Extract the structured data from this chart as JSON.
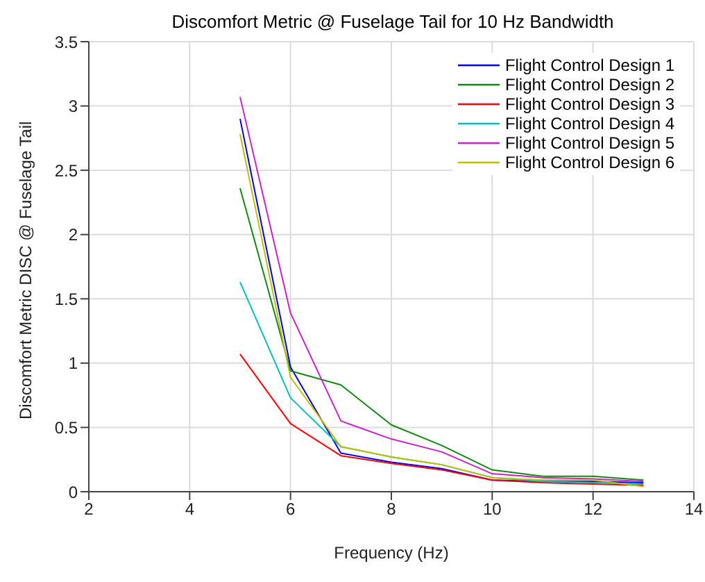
{
  "chart_data": {
    "type": "line",
    "title": "Discomfort Metric @ Fuselage Tail for 10 Hz Bandwidth",
    "xlabel": "Frequency (Hz)",
    "ylabel": "Discomfort Metric DISC @ Fuselage Tail",
    "x": [
      5,
      6,
      7,
      8,
      9,
      10,
      11,
      12,
      13
    ],
    "series": [
      {
        "name": "Flight Control Design 1",
        "color": "#0000ff",
        "values": [
          2.9,
          0.97,
          0.3,
          0.23,
          0.18,
          0.09,
          0.08,
          0.08,
          0.07
        ]
      },
      {
        "name": "Flight Control Design 2",
        "color": "#118a11",
        "values": [
          2.36,
          0.94,
          0.83,
          0.52,
          0.36,
          0.17,
          0.12,
          0.12,
          0.09
        ]
      },
      {
        "name": "Flight Control Design 3",
        "color": "#ff0000",
        "values": [
          1.07,
          0.53,
          0.28,
          0.22,
          0.17,
          0.09,
          0.07,
          0.06,
          0.05
        ]
      },
      {
        "name": "Flight Control Design 4",
        "color": "#00bfbf",
        "values": [
          1.63,
          0.73,
          0.35,
          0.27,
          0.21,
          0.11,
          0.08,
          0.07,
          0.06
        ]
      },
      {
        "name": "Flight Control Design 5",
        "color": "#cc22cc",
        "values": [
          3.07,
          1.39,
          0.55,
          0.41,
          0.31,
          0.14,
          0.11,
          0.1,
          0.08
        ]
      },
      {
        "name": "Flight Control Design 6",
        "color": "#bfbf00",
        "values": [
          2.78,
          0.89,
          0.35,
          0.27,
          0.21,
          0.11,
          0.09,
          0.09,
          0.04
        ]
      }
    ],
    "xlim": [
      2,
      14
    ],
    "xticks": [
      2,
      4,
      6,
      8,
      10,
      12,
      14
    ],
    "ylim": [
      0,
      3.5
    ],
    "yticks": [
      0,
      0.5,
      1,
      1.5,
      2,
      2.5,
      3,
      3.5
    ],
    "grid": true,
    "legend": "top right",
    "line_style": "solid",
    "marker": "none"
  }
}
